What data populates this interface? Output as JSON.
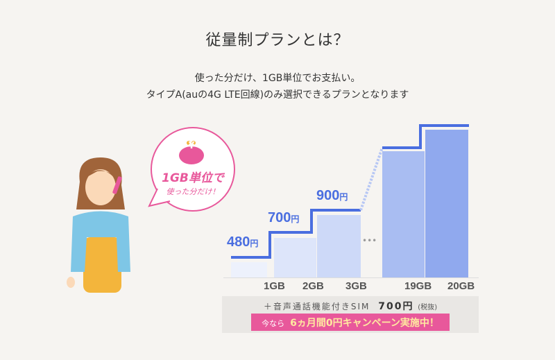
{
  "header": {
    "title": "従量制プランとは？",
    "lines": [
      "使った分だけ、1GB単位でお支払い。",
      "タイプA(auの4G LTE回線)のみ選択できるプランとなります"
    ]
  },
  "bubble": {
    "icon": "yen-purse-icon",
    "line1": "1GB単位で",
    "line2": "使った分だけ！",
    "yen": "¥"
  },
  "plans": [
    {
      "gb": "",
      "price": "480",
      "unit": "円"
    },
    {
      "gb": "1GB",
      "price": "700",
      "unit": "円"
    },
    {
      "gb": "2GB",
      "price": "900",
      "unit": "円"
    },
    {
      "gb": "3GB"
    },
    {
      "gb": "19GB"
    },
    {
      "gb": "20GB"
    }
  ],
  "ellipsis": "•••",
  "sim": {
    "text": "＋音声通話機能付きSIM",
    "price": "700円",
    "tax": "(税抜)"
  },
  "campaign": {
    "prefix": "今なら",
    "text": "6ヵ月間0円キャンペーン実施中！"
  },
  "colors": {
    "accent": "#4a6ee0",
    "pink": "#e8589b"
  }
}
